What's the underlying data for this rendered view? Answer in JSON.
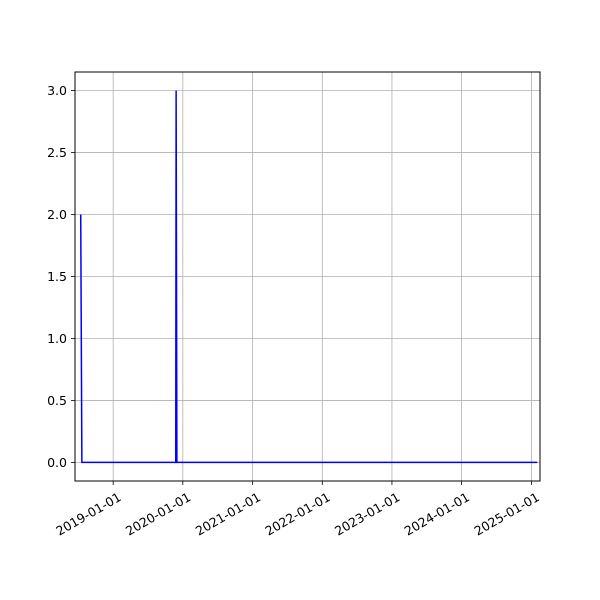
{
  "chart_data": {
    "type": "line",
    "title": "",
    "xlabel": "",
    "ylabel": "",
    "x_axis_type": "date",
    "xlim": [
      "2018-06-15",
      "2025-02-15"
    ],
    "ylim": [
      -0.15,
      3.15
    ],
    "x_ticks": [
      "2019-01-01",
      "2020-01-01",
      "2021-01-01",
      "2022-01-01",
      "2023-01-01",
      "2024-01-01",
      "2025-01-01"
    ],
    "x_tick_labels": [
      "2019-01-01",
      "2020-01-01",
      "2021-01-01",
      "2022-01-01",
      "2023-01-01",
      "2024-01-01",
      "2025-01-01"
    ],
    "y_ticks": [
      0.0,
      0.5,
      1.0,
      1.5,
      2.0,
      2.5,
      3.0
    ],
    "y_tick_labels": [
      "0.0",
      "0.5",
      "1.0",
      "1.5",
      "2.0",
      "2.5",
      "3.0"
    ],
    "grid": true,
    "legend": "none",
    "series": [
      {
        "color": "#0000ff",
        "points": [
          {
            "x": "2018-07-15",
            "y": 2
          },
          {
            "x": "2018-07-21",
            "y": 0
          },
          {
            "x": "2019-11-25",
            "y": 0
          },
          {
            "x": "2019-11-27",
            "y": 3
          },
          {
            "x": "2019-12-01",
            "y": 0
          },
          {
            "x": "2025-02-01",
            "y": 0
          }
        ]
      }
    ]
  }
}
